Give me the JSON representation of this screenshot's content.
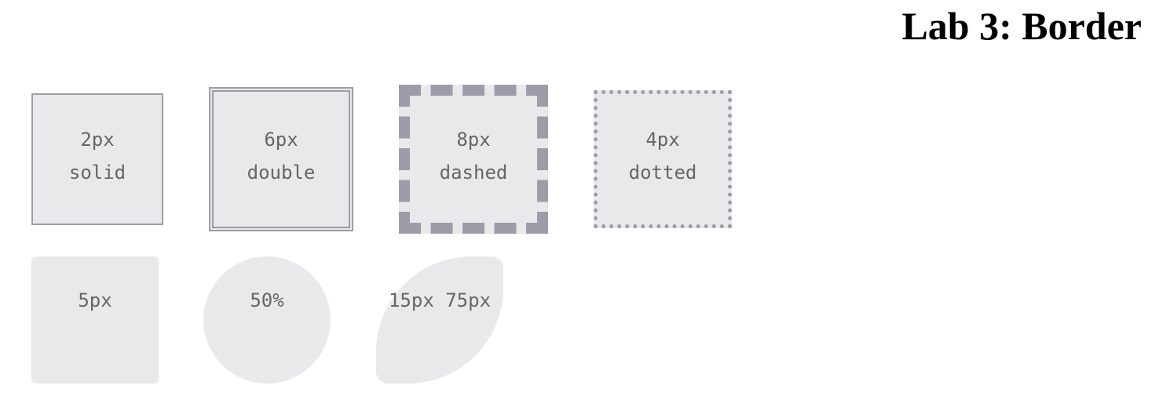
{
  "header": {
    "title": "Lab 3: Border"
  },
  "border_styles": [
    {
      "lines": [
        "2px",
        "solid"
      ]
    },
    {
      "lines": [
        "6px",
        "double"
      ]
    },
    {
      "lines": [
        "8px",
        "dashed"
      ]
    },
    {
      "lines": [
        "4px",
        "dotted"
      ]
    }
  ],
  "border_radii": [
    {
      "label": "5px"
    },
    {
      "label": "50%"
    },
    {
      "label": "15px 75px"
    }
  ]
}
